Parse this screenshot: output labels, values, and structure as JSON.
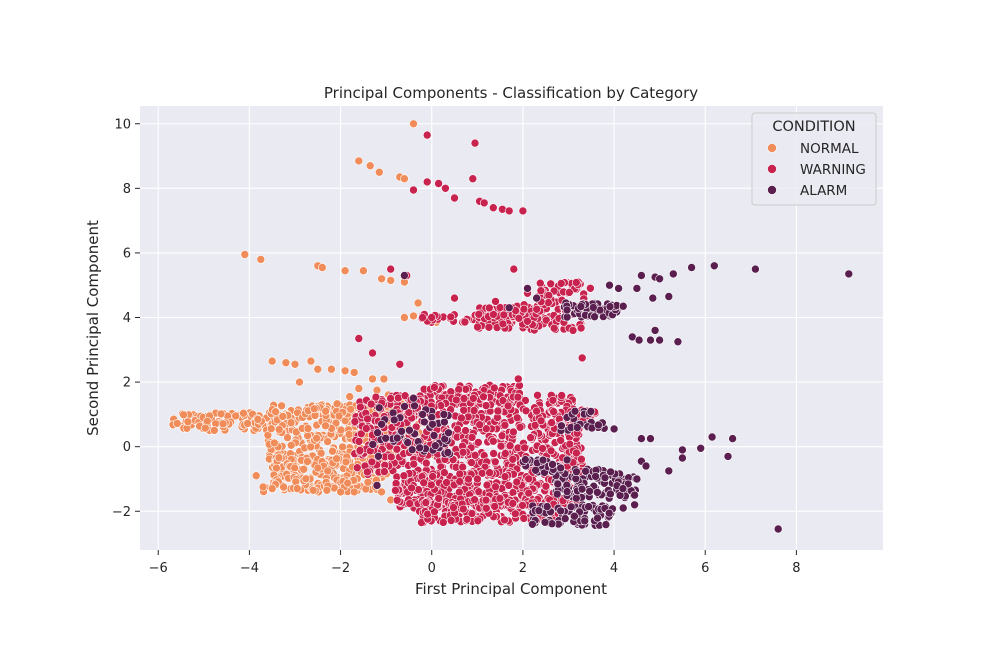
{
  "chart_data": {
    "type": "scatter",
    "title": "Principal Components - Classification by Category",
    "xlabel": "First Principal Component",
    "ylabel": "Second Principal Component",
    "xlim": [
      -6.4,
      9.9
    ],
    "ylim": [
      -3.2,
      10.55
    ],
    "xticks": [
      -6,
      -4,
      -2,
      0,
      2,
      4,
      6,
      8
    ],
    "yticks": [
      -2,
      0,
      2,
      4,
      6,
      8,
      10
    ],
    "xtick_labels": [
      "−6",
      "−4",
      "−2",
      "0",
      "2",
      "4",
      "6",
      "8"
    ],
    "ytick_labels": [
      "−2",
      "0",
      "2",
      "4",
      "6",
      "8",
      "10"
    ],
    "grid": true,
    "legend": {
      "title": "CONDITION",
      "placement": "top-right"
    },
    "series": [
      {
        "name": "NORMAL",
        "color": "#f08c5a",
        "points": [
          [
            -0.4,
            10.0
          ],
          [
            -1.6,
            8.85
          ],
          [
            -1.35,
            8.7
          ],
          [
            -1.15,
            8.5
          ],
          [
            -0.7,
            8.35
          ],
          [
            -0.6,
            8.3
          ],
          [
            -4.1,
            5.95
          ],
          [
            -3.75,
            5.8
          ],
          [
            -2.5,
            5.6
          ],
          [
            -2.4,
            5.55
          ],
          [
            -1.9,
            5.45
          ],
          [
            -1.5,
            5.45
          ],
          [
            -1.1,
            5.2
          ],
          [
            -0.9,
            5.15
          ],
          [
            -0.6,
            5.1
          ],
          [
            -0.3,
            4.45
          ],
          [
            -0.6,
            4.0
          ],
          [
            -0.4,
            4.05
          ],
          [
            0.1,
            3.85
          ],
          [
            -3.5,
            2.65
          ],
          [
            -3.2,
            2.6
          ],
          [
            -3.0,
            2.55
          ],
          [
            -2.65,
            2.65
          ],
          [
            -2.5,
            2.4
          ],
          [
            -2.2,
            2.4
          ],
          [
            -1.9,
            2.35
          ],
          [
            -1.7,
            2.3
          ],
          [
            -1.3,
            2.1
          ],
          [
            -1.05,
            2.1
          ],
          [
            -1.6,
            1.8
          ],
          [
            -1.2,
            1.75
          ],
          [
            -2.9,
            2.0
          ],
          [
            -1.8,
            1.55
          ],
          [
            -0.95,
            1.6
          ],
          [
            -0.6,
            1.55
          ],
          [
            -0.3,
            1.5
          ],
          [
            -3.85,
            -0.9
          ],
          [
            -3.7,
            -1.25
          ],
          [
            -3.5,
            -1.3
          ],
          [
            -3.25,
            -1.25
          ],
          [
            -2.95,
            -1.3
          ],
          [
            -2.6,
            -1.35
          ],
          [
            -2.3,
            -1.35
          ],
          [
            -2.0,
            -1.4
          ],
          [
            -1.7,
            -1.4
          ],
          [
            -1.4,
            -1.1
          ],
          [
            -1.1,
            -1.4
          ],
          [
            -0.9,
            -1.65
          ]
        ],
        "bands": [
          {
            "x": [
              -5.7,
              -3.0
            ],
            "y": [
              0.5,
              1.05
            ],
            "n": 110
          },
          {
            "x": [
              -3.6,
              -0.6
            ],
            "y": [
              -0.5,
              1.3
            ],
            "n": 300
          },
          {
            "x": [
              -2.6,
              -0.1
            ],
            "y": [
              0.95,
              1.35
            ],
            "n": 100
          },
          {
            "x": [
              -3.5,
              -0.9
            ],
            "y": [
              -1.0,
              -0.3
            ],
            "n": 140
          },
          {
            "x": [
              -3.7,
              -1.2
            ],
            "y": [
              -1.4,
              -0.95
            ],
            "n": 90
          },
          {
            "x": [
              -1.2,
              0.2
            ],
            "y": [
              -0.3,
              0.8
            ],
            "n": 90
          }
        ]
      },
      {
        "name": "WARNING",
        "color": "#c8224e",
        "points": [
          [
            -0.1,
            9.65
          ],
          [
            0.95,
            9.4
          ],
          [
            -0.1,
            8.2
          ],
          [
            0.15,
            8.15
          ],
          [
            0.3,
            8.0
          ],
          [
            0.9,
            8.3
          ],
          [
            -0.4,
            7.95
          ],
          [
            0.5,
            7.7
          ],
          [
            1.05,
            7.6
          ],
          [
            1.15,
            7.55
          ],
          [
            1.35,
            7.4
          ],
          [
            1.55,
            7.35
          ],
          [
            1.7,
            7.3
          ],
          [
            2.0,
            7.3
          ],
          [
            -0.9,
            5.5
          ],
          [
            -0.55,
            5.3
          ],
          [
            0.5,
            4.6
          ],
          [
            1.8,
            5.5
          ],
          [
            2.1,
            4.75
          ],
          [
            1.4,
            4.5
          ],
          [
            3.3,
            2.75
          ],
          [
            3.1,
            3.6
          ],
          [
            2.9,
            3.85
          ],
          [
            -1.6,
            3.35
          ],
          [
            -1.3,
            2.9
          ],
          [
            -0.7,
            2.55
          ],
          [
            1.9,
            2.1
          ],
          [
            2.3,
            1.1
          ],
          [
            2.4,
            0.8
          ],
          [
            3.4,
            1.1
          ],
          [
            -0.2,
            4.0
          ],
          [
            0.0,
            4.0
          ]
        ],
        "bands": [
          {
            "x": [
              -0.3,
              2.5
            ],
            "y": [
              3.85,
              4.1
            ],
            "n": 50
          },
          {
            "x": [
              1.0,
              3.3
            ],
            "y": [
              3.6,
              4.4
            ],
            "n": 140
          },
          {
            "x": [
              2.3,
              3.5
            ],
            "y": [
              4.2,
              5.1
            ],
            "n": 60
          },
          {
            "x": [
              -0.2,
              2.0
            ],
            "y": [
              1.3,
              1.9
            ],
            "n": 90
          },
          {
            "x": [
              -1.7,
              3.3
            ],
            "y": [
              -0.9,
              1.6
            ],
            "n": 650
          },
          {
            "x": [
              -0.8,
              3.3
            ],
            "y": [
              -1.9,
              -0.8
            ],
            "n": 350
          },
          {
            "x": [
              -0.3,
              3.0
            ],
            "y": [
              -2.35,
              -1.6
            ],
            "n": 200
          },
          {
            "x": [
              2.6,
              3.6
            ],
            "y": [
              0.6,
              1.1
            ],
            "n": 30
          }
        ]
      },
      {
        "name": "ALARM",
        "color": "#5a1e4f",
        "points": [
          [
            5.7,
            5.55
          ],
          [
            6.2,
            5.6
          ],
          [
            7.1,
            5.5
          ],
          [
            9.15,
            5.35
          ],
          [
            5.3,
            5.35
          ],
          [
            4.9,
            5.25
          ],
          [
            4.6,
            5.3
          ],
          [
            5.0,
            5.2
          ],
          [
            4.85,
            4.6
          ],
          [
            5.2,
            4.65
          ],
          [
            4.2,
            4.35
          ],
          [
            4.9,
            3.6
          ],
          [
            4.4,
            3.4
          ],
          [
            4.55,
            3.3
          ],
          [
            4.8,
            3.3
          ],
          [
            5.0,
            3.3
          ],
          [
            5.4,
            3.25
          ],
          [
            3.9,
            5.0
          ],
          [
            2.1,
            4.9
          ],
          [
            2.3,
            4.6
          ],
          [
            1.7,
            4.3
          ],
          [
            4.1,
            4.9
          ],
          [
            4.5,
            4.9
          ],
          [
            0.05,
            0.35
          ],
          [
            2.65,
            -0.55
          ],
          [
            4.0,
            0.55
          ],
          [
            4.6,
            0.25
          ],
          [
            4.8,
            0.25
          ],
          [
            5.9,
            -0.05
          ],
          [
            6.15,
            0.3
          ],
          [
            6.6,
            0.25
          ],
          [
            6.5,
            -0.3
          ],
          [
            5.5,
            -0.1
          ],
          [
            5.5,
            -0.35
          ],
          [
            5.2,
            -0.75
          ],
          [
            4.6,
            -0.45
          ],
          [
            4.7,
            -0.6
          ],
          [
            4.5,
            -1.0
          ],
          [
            4.45,
            -1.5
          ],
          [
            4.45,
            -1.8
          ],
          [
            4.2,
            -1.9
          ],
          [
            7.6,
            -2.55
          ],
          [
            -0.6,
            5.3
          ],
          [
            -0.4,
            1.5
          ],
          [
            -0.2,
            1.0
          ],
          [
            -1.2,
            -1.2
          ]
        ],
        "bands": [
          {
            "x": [
              2.9,
              4.1
            ],
            "y": [
              4.0,
              4.45
            ],
            "n": 60
          },
          {
            "x": [
              2.7,
              4.5
            ],
            "y": [
              -1.6,
              -0.7
            ],
            "n": 110
          },
          {
            "x": [
              2.2,
              4.0
            ],
            "y": [
              -2.45,
              -1.8
            ],
            "n": 80
          },
          {
            "x": [
              2.8,
              3.8
            ],
            "y": [
              0.5,
              1.1
            ],
            "n": 25
          },
          {
            "x": [
              -1.3,
              0.4
            ],
            "y": [
              -0.3,
              1.3
            ],
            "n": 50
          },
          {
            "x": [
              2.0,
              3.2
            ],
            "y": [
              -0.8,
              -0.4
            ],
            "n": 30
          }
        ]
      }
    ]
  }
}
